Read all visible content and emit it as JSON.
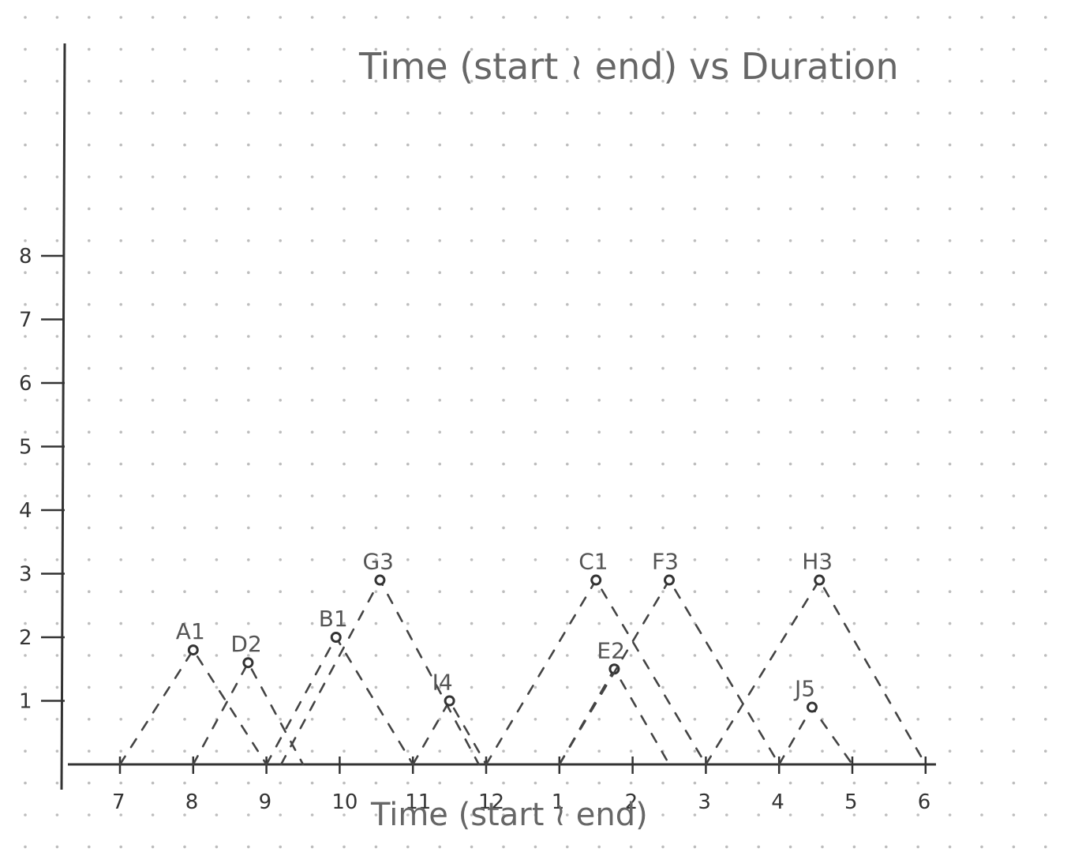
{
  "chart_data": {
    "type": "scatter",
    "title": "Time (start ≀ end) vs Duration",
    "xlabel": "Time (start ≀ end)",
    "ylabel": "",
    "x_ticks": [
      "7",
      "8",
      "9",
      "10",
      "11",
      "12",
      "1",
      "2",
      "3",
      "4",
      "5",
      "6"
    ],
    "y_ticks": [
      "1",
      "2",
      "3",
      "4",
      "5",
      "6",
      "7",
      "8"
    ],
    "xlim": [
      0,
      11
    ],
    "ylim": [
      0,
      8
    ],
    "grid": "dot grid",
    "points": [
      {
        "label": "A1",
        "x": 1.0,
        "y": 1.8,
        "start": 0.0,
        "end": 2.0
      },
      {
        "label": "D2",
        "x": 1.75,
        "y": 1.6,
        "start": 1.0,
        "end": 2.5
      },
      {
        "label": "B1",
        "x": 2.95,
        "y": 2.0,
        "start": 2.0,
        "end": 4.0
      },
      {
        "label": "G3",
        "x": 3.55,
        "y": 2.9,
        "start": 2.2,
        "end": 4.9
      },
      {
        "label": "I4",
        "x": 4.5,
        "y": 1.0,
        "start": 4.0,
        "end": 5.0
      },
      {
        "label": "C1",
        "x": 6.5,
        "y": 2.9,
        "start": 5.0,
        "end": 8.0
      },
      {
        "label": "E2",
        "x": 6.75,
        "y": 1.5,
        "start": 6.0,
        "end": 7.5
      },
      {
        "label": "F3",
        "x": 7.5,
        "y": 2.9,
        "start": 6.0,
        "end": 9.0
      },
      {
        "label": "H3",
        "x": 9.55,
        "y": 2.9,
        "start": 8.0,
        "end": 11.0
      },
      {
        "label": "J5",
        "x": 9.45,
        "y": 0.9,
        "start": 9.0,
        "end": 10.0
      }
    ]
  }
}
